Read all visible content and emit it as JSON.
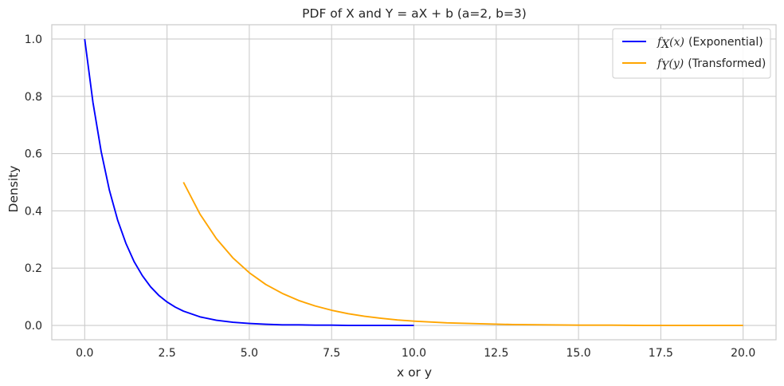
{
  "chart_data": {
    "type": "line",
    "title": "PDF of X and Y = aX + b (a=2, b=3)",
    "xlabel": "x or y",
    "ylabel": "Density",
    "xlim": [
      -1,
      21
    ],
    "ylim": [
      -0.05,
      1.05
    ],
    "xticks": [
      "0.0",
      "2.5",
      "5.0",
      "7.5",
      "10.0",
      "12.5",
      "15.0",
      "17.5",
      "20.0"
    ],
    "yticks": [
      "0.0",
      "0.2",
      "0.4",
      "0.6",
      "0.8",
      "1.0"
    ],
    "grid": true,
    "legend_position": "upper right",
    "series": [
      {
        "name": "f_X(x) (Exponential)",
        "legend_math": "f_X(x)",
        "legend_suffix": "(Exponential)",
        "color": "#0000ff",
        "x": [
          0,
          0.25,
          0.5,
          0.75,
          1,
          1.25,
          1.5,
          1.75,
          2,
          2.25,
          2.5,
          2.75,
          3,
          3.5,
          4,
          4.5,
          5,
          5.5,
          6,
          6.5,
          7,
          7.5,
          8,
          8.5,
          9,
          9.5,
          10
        ],
        "y": [
          1.0,
          0.779,
          0.607,
          0.472,
          0.368,
          0.287,
          0.223,
          0.174,
          0.135,
          0.105,
          0.082,
          0.064,
          0.05,
          0.03,
          0.018,
          0.011,
          0.007,
          0.004,
          0.002,
          0.002,
          0.001,
          0.001,
          0.0,
          0.0,
          0.0,
          0.0,
          0.0
        ]
      },
      {
        "name": "f_Y(y) (Transformed)",
        "legend_math": "f_Y(y)",
        "legend_suffix": "(Transformed)",
        "color": "#ffa500",
        "x": [
          3,
          3.5,
          4,
          4.5,
          5,
          5.5,
          6,
          6.5,
          7,
          7.5,
          8,
          8.5,
          9,
          9.5,
          10,
          11,
          12,
          13,
          14,
          15,
          16,
          17,
          18,
          19,
          20
        ],
        "y": [
          0.5,
          0.389,
          0.303,
          0.236,
          0.184,
          0.143,
          0.112,
          0.087,
          0.068,
          0.053,
          0.041,
          0.032,
          0.025,
          0.019,
          0.015,
          0.009,
          0.006,
          0.003,
          0.002,
          0.001,
          0.001,
          0.0,
          0.0,
          0.0,
          0.0
        ]
      }
    ]
  }
}
